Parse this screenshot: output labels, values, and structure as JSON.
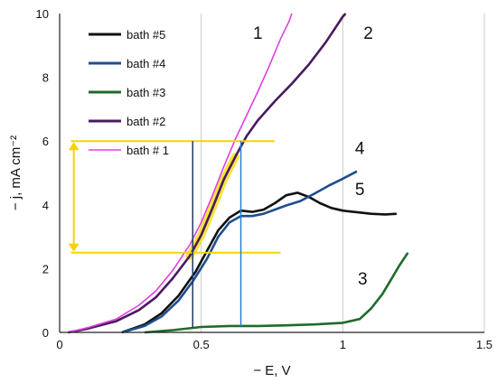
{
  "chart_data": {
    "type": "line",
    "xlabel": "− E, V",
    "ylabel": "− j, mA cm⁻²",
    "xlim": [
      0,
      1.5
    ],
    "ylim": [
      0,
      10
    ],
    "x_ticks": [
      "0",
      "0.5",
      "1",
      "1.5"
    ],
    "y_ticks": [
      "0",
      "2",
      "4",
      "6",
      "8",
      "10"
    ],
    "grid": "vertical",
    "legend_position": "top-left",
    "series": [
      {
        "name": "bath #5",
        "color": "#111111",
        "label": "5",
        "points": [
          [
            0.22,
            0.0
          ],
          [
            0.3,
            0.25
          ],
          [
            0.36,
            0.6
          ],
          [
            0.42,
            1.15
          ],
          [
            0.48,
            1.9
          ],
          [
            0.52,
            2.55
          ],
          [
            0.56,
            3.2
          ],
          [
            0.6,
            3.6
          ],
          [
            0.64,
            3.82
          ],
          [
            0.68,
            3.78
          ],
          [
            0.72,
            3.85
          ],
          [
            0.76,
            4.05
          ],
          [
            0.8,
            4.3
          ],
          [
            0.84,
            4.38
          ],
          [
            0.88,
            4.25
          ],
          [
            0.92,
            4.05
          ],
          [
            0.96,
            3.9
          ],
          [
            1.0,
            3.82
          ],
          [
            1.05,
            3.77
          ],
          [
            1.1,
            3.72
          ],
          [
            1.15,
            3.7
          ],
          [
            1.19,
            3.72
          ]
        ]
      },
      {
        "name": "bath #4",
        "color": "#1f4e8c",
        "label": "4",
        "points": [
          [
            0.22,
            0.0
          ],
          [
            0.3,
            0.2
          ],
          [
            0.36,
            0.5
          ],
          [
            0.42,
            1.0
          ],
          [
            0.47,
            1.6
          ],
          [
            0.52,
            2.3
          ],
          [
            0.56,
            3.0
          ],
          [
            0.6,
            3.45
          ],
          [
            0.64,
            3.65
          ],
          [
            0.68,
            3.65
          ],
          [
            0.72,
            3.72
          ],
          [
            0.76,
            3.85
          ],
          [
            0.8,
            3.98
          ],
          [
            0.85,
            4.12
          ],
          [
            0.9,
            4.35
          ],
          [
            0.95,
            4.6
          ],
          [
            1.0,
            4.82
          ],
          [
            1.05,
            5.05
          ]
        ]
      },
      {
        "name": "bath #3",
        "color": "#1f6b2a",
        "label": "3",
        "points": [
          [
            0.3,
            0.0
          ],
          [
            0.4,
            0.07
          ],
          [
            0.5,
            0.17
          ],
          [
            0.6,
            0.2
          ],
          [
            0.7,
            0.2
          ],
          [
            0.8,
            0.22
          ],
          [
            0.9,
            0.25
          ],
          [
            1.0,
            0.3
          ],
          [
            1.06,
            0.42
          ],
          [
            1.1,
            0.75
          ],
          [
            1.14,
            1.2
          ],
          [
            1.17,
            1.65
          ],
          [
            1.2,
            2.1
          ],
          [
            1.23,
            2.5
          ]
        ]
      },
      {
        "name": "bath #2",
        "color": "#4a1a5e",
        "label": "2",
        "points": [
          [
            0.03,
            0.0
          ],
          [
            0.1,
            0.12
          ],
          [
            0.2,
            0.35
          ],
          [
            0.28,
            0.7
          ],
          [
            0.34,
            1.1
          ],
          [
            0.4,
            1.7
          ],
          [
            0.46,
            2.4
          ],
          [
            0.5,
            3.05
          ],
          [
            0.54,
            3.9
          ],
          [
            0.58,
            4.8
          ],
          [
            0.62,
            5.5
          ],
          [
            0.66,
            6.15
          ],
          [
            0.7,
            6.65
          ],
          [
            0.76,
            7.25
          ],
          [
            0.82,
            7.8
          ],
          [
            0.88,
            8.4
          ],
          [
            0.94,
            9.1
          ],
          [
            1.0,
            9.9
          ],
          [
            1.01,
            10.0
          ]
        ]
      },
      {
        "name": "bath # 1",
        "color": "#e040e0",
        "label": "1",
        "points": [
          [
            0.03,
            0.0
          ],
          [
            0.1,
            0.15
          ],
          [
            0.2,
            0.42
          ],
          [
            0.28,
            0.85
          ],
          [
            0.34,
            1.3
          ],
          [
            0.4,
            1.95
          ],
          [
            0.46,
            2.75
          ],
          [
            0.5,
            3.45
          ],
          [
            0.54,
            4.3
          ],
          [
            0.58,
            5.2
          ],
          [
            0.62,
            6.05
          ],
          [
            0.66,
            6.8
          ],
          [
            0.7,
            7.55
          ],
          [
            0.74,
            8.35
          ],
          [
            0.78,
            9.2
          ],
          [
            0.81,
            9.75
          ],
          [
            0.82,
            10.0
          ]
        ]
      }
    ],
    "curve_number_labels": [
      {
        "text": "1",
        "x": 0.7,
        "y": 9.2
      },
      {
        "text": "2",
        "x": 1.09,
        "y": 9.2
      },
      {
        "text": "4",
        "x": 1.06,
        "y": 5.6
      },
      {
        "text": "5",
        "x": 1.06,
        "y": 4.3
      },
      {
        "text": "3",
        "x": 1.07,
        "y": 1.5
      }
    ],
    "annotations": {
      "highlight_band": {
        "color": "#f5e11e",
        "x_range": [
          0.48,
          0.64
        ],
        "y_range": [
          2.5,
          6.0
        ]
      },
      "horizontal_lines": [
        {
          "y": 6.0,
          "x_from": 0.04,
          "x_to": 0.76,
          "color": "#f5d20a"
        },
        {
          "y": 2.5,
          "x_from": 0.04,
          "x_to": 0.78,
          "color": "#f5d20a"
        }
      ],
      "double_arrow": {
        "x": 0.05,
        "y_from": 2.5,
        "y_to": 6.0,
        "color": "#f5d20a"
      },
      "vertical_lines": [
        {
          "x": 0.47,
          "y_from": 0.15,
          "y_to": 6.0,
          "color": "#1f3a6b"
        },
        {
          "x": 0.64,
          "y_from": 0.2,
          "y_to": 6.0,
          "color": "#2a7fd4"
        }
      ]
    }
  }
}
